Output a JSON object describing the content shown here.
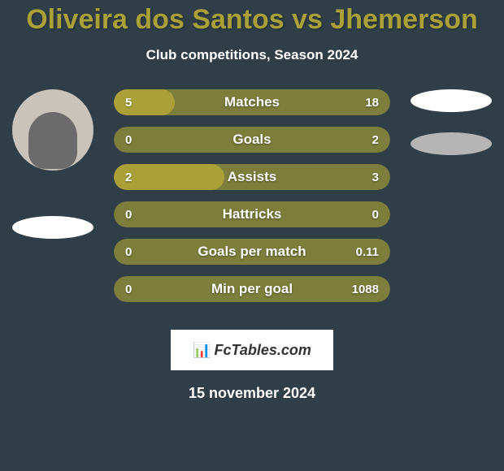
{
  "title": "Oliveira dos Santos vs Jhemerson",
  "subtitle": "Club competitions, Season 2024",
  "date": "15 november 2024",
  "logo_text": "FcTables.com",
  "colors": {
    "background": "#303e47",
    "title_color": "#a9a138",
    "bar_left_fill": "#a9a138",
    "bar_neutral": "#7d7d3c",
    "text_white": "#ffffff",
    "oval_light": "#ffffff",
    "oval_gray": "#b5b5b5"
  },
  "stats": [
    {
      "label": "Matches",
      "left_value": "5",
      "right_value": "18",
      "left_pct": 22,
      "bar_color_left": "#a9a138",
      "bar_color_bg": "#7d7d3c"
    },
    {
      "label": "Goals",
      "left_value": "0",
      "right_value": "2",
      "left_pct": 0,
      "bar_color_left": "#a9a138",
      "bar_color_bg": "#7d7d3c"
    },
    {
      "label": "Assists",
      "left_value": "2",
      "right_value": "3",
      "left_pct": 40,
      "bar_color_left": "#a9a138",
      "bar_color_bg": "#7d7d3c"
    },
    {
      "label": "Hattricks",
      "left_value": "0",
      "right_value": "0",
      "left_pct": 0,
      "bar_color_left": "#a9a138",
      "bar_color_bg": "#7d7d3c"
    },
    {
      "label": "Goals per match",
      "left_value": "0",
      "right_value": "0.11",
      "left_pct": 0,
      "bar_color_left": "#a9a138",
      "bar_color_bg": "#7d7d3c"
    },
    {
      "label": "Min per goal",
      "left_value": "0",
      "right_value": "1088",
      "left_pct": 0,
      "bar_color_left": "#a9a138",
      "bar_color_bg": "#7d7d3c"
    }
  ]
}
